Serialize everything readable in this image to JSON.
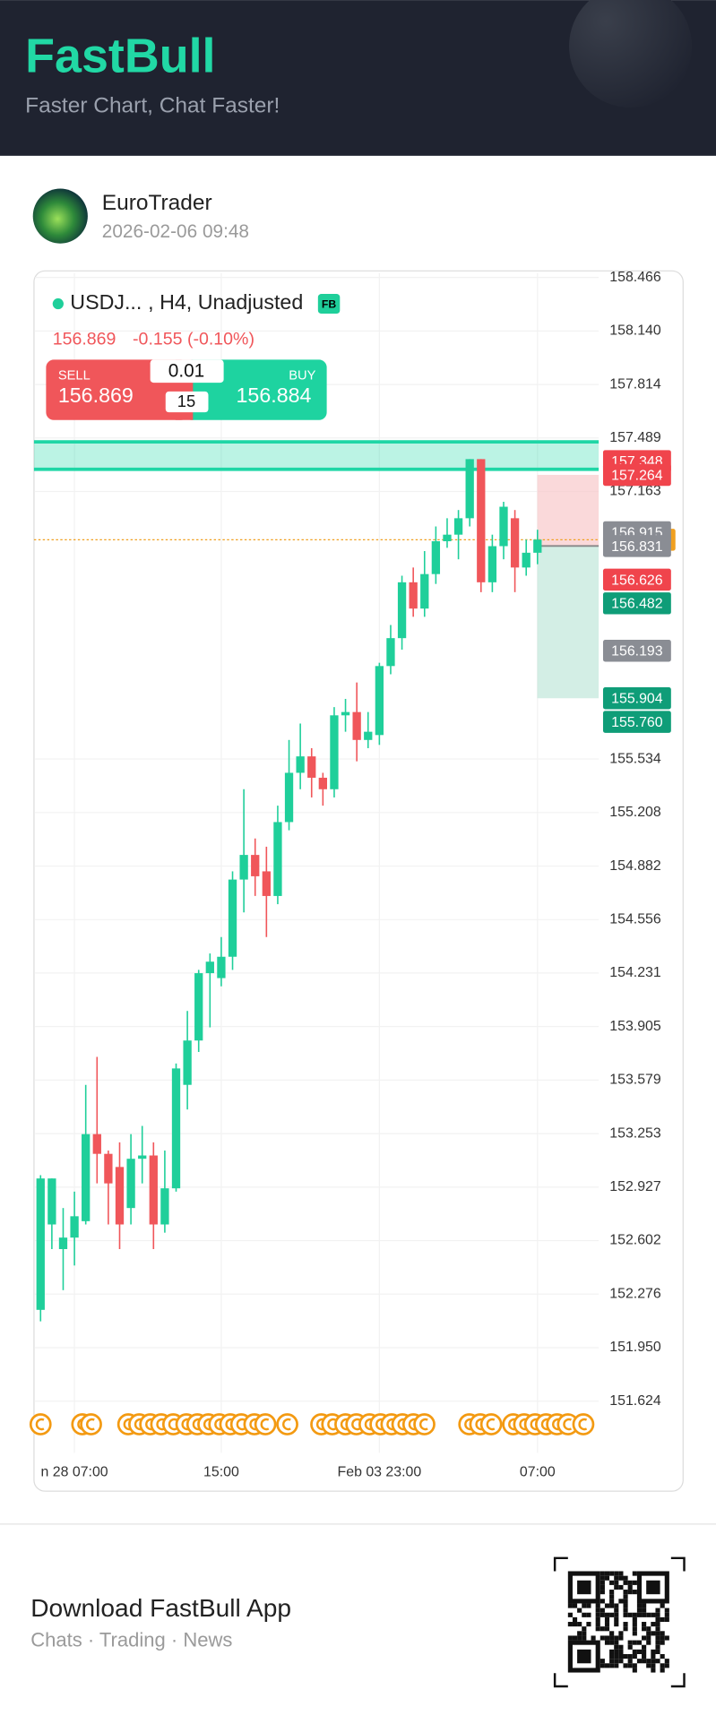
{
  "header": {
    "logo": "FastBull",
    "tagline": "Faster Chart, Chat Faster!"
  },
  "post": {
    "author": "EuroTrader",
    "time": "2026-02-06 09:48"
  },
  "chart_data": {
    "type": "candlestick",
    "symbol": "USDJ...",
    "details": ", H4, Unadjusted",
    "badge": "FB",
    "price": 156.869,
    "change_text": "-0.155 (-0.10%)",
    "trade": {
      "sell_label": "SELL",
      "sell": 156.869,
      "lot": 0.01,
      "count": 15,
      "buy_label": "BUY",
      "buy": 156.884
    },
    "x": [
      null,
      null,
      null,
      "n 28 07:00",
      null,
      null,
      null,
      null,
      null,
      null,
      null,
      null,
      null,
      null,
      null,
      null,
      "15:00",
      null,
      null,
      null,
      null,
      null,
      null,
      null,
      null,
      null,
      null,
      null,
      null,
      null,
      "Feb 03 23:00",
      null,
      null,
      null,
      null,
      null,
      null,
      null,
      null,
      null,
      null,
      null,
      null,
      null,
      "07:00"
    ],
    "open": [
      152.18,
      152.7,
      152.55,
      152.62,
      152.72,
      153.25,
      153.13,
      153.05,
      152.8,
      153.1,
      153.12,
      152.7,
      152.92,
      153.55,
      153.82,
      154.23,
      154.2,
      154.33,
      154.8,
      154.95,
      154.85,
      154.7,
      155.15,
      155.45,
      155.55,
      155.42,
      155.35,
      155.8,
      155.82,
      155.65,
      155.68,
      156.1,
      156.27,
      156.61,
      156.45,
      156.66,
      156.86,
      156.9,
      157.0,
      157.36,
      156.61,
      156.83,
      157.0,
      156.7,
      156.79
    ],
    "high": [
      153.0,
      152.98,
      152.8,
      152.9,
      153.55,
      153.72,
      153.15,
      153.2,
      153.25,
      153.3,
      153.2,
      153.15,
      153.68,
      154.0,
      154.25,
      154.35,
      154.45,
      154.85,
      155.35,
      155.05,
      155.0,
      155.25,
      155.65,
      155.75,
      155.6,
      155.45,
      155.85,
      155.9,
      156.0,
      155.82,
      156.12,
      156.35,
      156.65,
      156.7,
      156.8,
      156.95,
      157.0,
      157.05,
      157.36,
      157.36,
      156.9,
      157.1,
      157.05,
      156.87,
      156.93
    ],
    "low": [
      152.11,
      152.55,
      152.3,
      152.45,
      152.7,
      152.95,
      152.7,
      152.55,
      152.7,
      152.95,
      152.55,
      152.65,
      152.9,
      153.4,
      153.75,
      153.9,
      154.15,
      154.25,
      154.6,
      154.7,
      154.45,
      154.65,
      155.1,
      155.35,
      155.3,
      155.25,
      155.3,
      155.7,
      155.52,
      155.6,
      155.62,
      156.05,
      156.2,
      156.4,
      156.4,
      156.6,
      156.82,
      156.75,
      156.95,
      156.55,
      156.55,
      156.75,
      156.55,
      156.65,
      156.72
    ],
    "close": [
      152.98,
      152.98,
      152.62,
      152.75,
      153.25,
      153.13,
      152.95,
      152.7,
      153.1,
      153.12,
      152.7,
      152.92,
      153.65,
      153.82,
      154.23,
      154.3,
      154.33,
      154.8,
      154.95,
      154.82,
      154.7,
      155.15,
      155.45,
      155.55,
      155.42,
      155.35,
      155.8,
      155.82,
      155.65,
      155.7,
      156.1,
      156.27,
      156.61,
      156.45,
      156.66,
      156.86,
      156.9,
      157.0,
      157.36,
      156.61,
      156.83,
      157.07,
      156.7,
      156.79,
      156.87
    ],
    "up_color": "#1fcf9a",
    "down_color": "#f0565a",
    "ylim": [
      151.343,
      158.506
    ],
    "yticks": [
      158.466,
      {
        "value": 158.14,
        "label": "158.140"
      },
      157.814,
      157.489,
      157.163,
      155.534,
      155.208,
      154.882,
      154.556,
      154.231,
      153.905,
      153.579,
      153.253,
      152.927,
      152.602,
      152.276,
      {
        "value": 151.95,
        "label": "151.950"
      },
      151.624
    ],
    "band": [
      157.465,
      157.298
    ],
    "price_labels": [
      {
        "value": 157.348,
        "color": "#f0444c"
      },
      {
        "value": 157.264,
        "color": "#f0444c"
      },
      {
        "value": 156.915,
        "color": "#8a8d94"
      },
      {
        "value": 156.831,
        "color": "#8a8d94"
      },
      {
        "value": 156.626,
        "color": "#f0444c"
      },
      {
        "value": 156.482,
        "color": "#0f9d78"
      },
      {
        "value": 156.193,
        "color": "#8a8d94"
      },
      {
        "value": 155.904,
        "color": "#0f9d78"
      },
      {
        "value": {
          "value": 155.76,
          "label": "155.760"
        },
        "color": "#0f9d78"
      }
    ],
    "grid": true
  },
  "footer": {
    "title": "Download FastBull App",
    "subtitle": "Chats · Trading · News"
  }
}
